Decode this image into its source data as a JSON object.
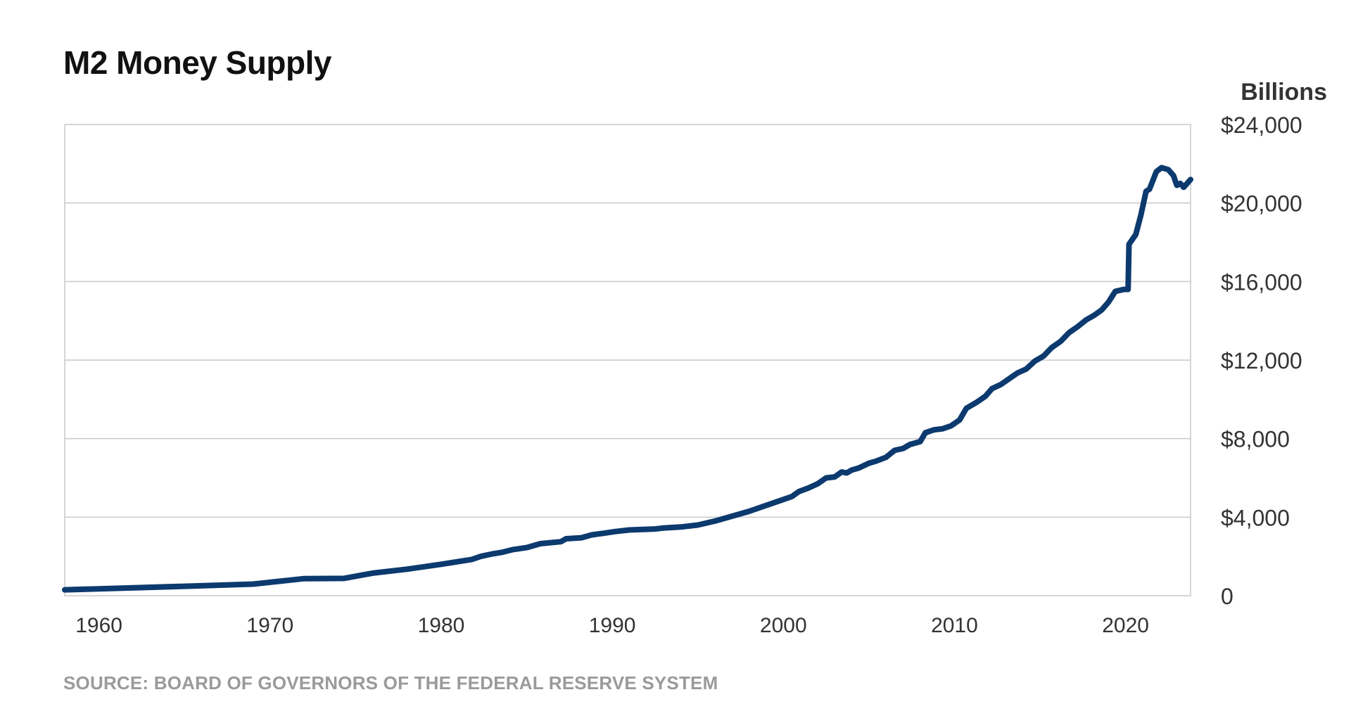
{
  "chart_data": {
    "type": "line",
    "title": "M2 Money Supply",
    "unit_label": "Billions",
    "source": "SOURCE: BOARD OF GOVERNORS OF THE FEDERAL RESERVE SYSTEM",
    "xlim": [
      1958.0,
      2023.8
    ],
    "ylim": [
      0,
      24000
    ],
    "grid": true,
    "y_axis_side": "right",
    "x_ticks": [
      1960,
      1970,
      1980,
      1990,
      2000,
      2010,
      2020
    ],
    "x_tick_labels": [
      "1960",
      "1970",
      "1980",
      "1990",
      "2000",
      "2010",
      "2020"
    ],
    "y_ticks": [
      0,
      4000,
      8000,
      12000,
      16000,
      20000,
      24000
    ],
    "y_tick_labels": [
      "0",
      "$4,000",
      "$8,000",
      "$12,000",
      "$16,000",
      "$20,000",
      "$24,000"
    ],
    "line_color": "#0c3a6e",
    "series": [
      {
        "x": [
          1958.0,
          1960.0,
          1965.0,
          1969.0,
          1972.0,
          1974.3,
          1976.0,
          1978.0,
          1980.0,
          1981.8,
          1982.3,
          1983.0,
          1983.5,
          1984.2,
          1985.0,
          1985.8,
          1987.0,
          1987.3,
          1988.2,
          1988.8,
          1989.5,
          1990.2,
          1991.0,
          1992.5,
          1993.0,
          1994.0,
          1995.0,
          1996.0,
          1998.0,
          2000.0,
          2000.5,
          2000.9,
          2001.5,
          2002.0,
          2002.5,
          2003.0,
          2003.4,
          2003.7,
          2004.0,
          2004.4,
          2005.0,
          2005.4,
          2006.0,
          2006.5,
          2007.0,
          2007.4,
          2008.0,
          2008.3,
          2008.8,
          2009.3,
          2009.8,
          2010.3,
          2010.7,
          2011.3,
          2011.8,
          2012.2,
          2012.7,
          2013.2,
          2013.7,
          2014.2,
          2014.7,
          2015.2,
          2015.7,
          2016.2,
          2016.7,
          2017.2,
          2017.7,
          2018.2,
          2018.6,
          2019.0,
          2019.4,
          2019.9,
          2020.15,
          2020.2,
          2020.6,
          2020.9,
          2021.2,
          2021.4,
          2021.8,
          2022.1,
          2022.5,
          2022.8,
          2023.0,
          2023.2,
          2023.4,
          2023.6,
          2023.8
        ],
        "values": [
          300,
          350,
          480,
          590,
          870,
          880,
          1150,
          1350,
          1600,
          1850,
          2000,
          2130,
          2200,
          2350,
          2450,
          2650,
          2750,
          2900,
          2950,
          3100,
          3180,
          3270,
          3350,
          3400,
          3450,
          3500,
          3600,
          3800,
          4300,
          4900,
          5050,
          5300,
          5500,
          5700,
          6000,
          6050,
          6300,
          6250,
          6400,
          6500,
          6750,
          6850,
          7050,
          7400,
          7500,
          7700,
          7850,
          8300,
          8450,
          8500,
          8650,
          8950,
          9550,
          9850,
          10150,
          10550,
          10750,
          11050,
          11350,
          11550,
          11950,
          12200,
          12650,
          12950,
          13400,
          13700,
          14050,
          14300,
          14550,
          14950,
          15500,
          15600,
          15600,
          17900,
          18400,
          19400,
          20600,
          20700,
          21600,
          21800,
          21700,
          21400,
          20900,
          21000,
          20800,
          21000,
          21200
        ]
      }
    ]
  }
}
